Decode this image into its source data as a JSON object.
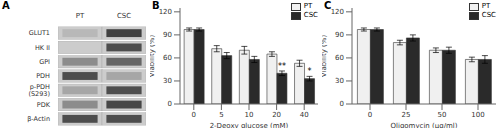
{
  "chart_data": [
    {
      "type": "heatmap",
      "title": "A",
      "categories": [
        "PT",
        "CSC"
      ],
      "rows": [
        "GLUT1",
        "HK II",
        "GPI",
        "PDH",
        "p-PDH (S293)",
        "PDK",
        "β-Actin"
      ],
      "cells": [
        [
          0.72,
          0.25
        ],
        [
          0.8,
          0.3
        ],
        [
          0.55,
          0.4
        ],
        [
          0.3,
          0.65
        ],
        [
          0.65,
          0.3
        ],
        [
          0.55,
          0.28
        ],
        [
          0.3,
          0.3
        ]
      ]
    },
    {
      "type": "bar",
      "title": "B",
      "categories": [
        "0",
        "5",
        "10",
        "20",
        "40"
      ],
      "xlabel": "2-Deoxy glucose (mM)",
      "ylabel": "Viability (%)",
      "series": [
        {
          "name": "PT",
          "color": "#f0f0f0",
          "values": [
            97,
            72,
            70,
            65,
            53
          ],
          "errors": [
            2,
            4,
            5,
            3,
            4
          ]
        },
        {
          "name": "CSC",
          "color": "#2a2a2a",
          "values": [
            97,
            63,
            58,
            40,
            33
          ],
          "errors": [
            2,
            4,
            4,
            3,
            3
          ],
          "annotations": [
            null,
            null,
            null,
            "**",
            "*"
          ]
        }
      ],
      "ylim": [
        0,
        125
      ],
      "yticks": [
        0,
        30,
        60,
        90,
        120
      ],
      "legend": "upper right"
    },
    {
      "type": "bar",
      "title": "C",
      "categories": [
        "0",
        "25",
        "50",
        "100"
      ],
      "xlabel": "Oligomycin (μg/ml)",
      "ylabel": "Viability (%)",
      "series": [
        {
          "name": "PT",
          "color": "#f0f0f0",
          "values": [
            97,
            80,
            70,
            58
          ],
          "errors": [
            2,
            3,
            3,
            3
          ]
        },
        {
          "name": "CSC",
          "color": "#2a2a2a",
          "values": [
            97,
            86,
            70,
            58
          ],
          "errors": [
            2,
            4,
            4,
            5
          ]
        }
      ],
      "ylim": [
        0,
        125
      ],
      "yticks": [
        0,
        30,
        60,
        90,
        120
      ],
      "legend": "upper right"
    }
  ]
}
